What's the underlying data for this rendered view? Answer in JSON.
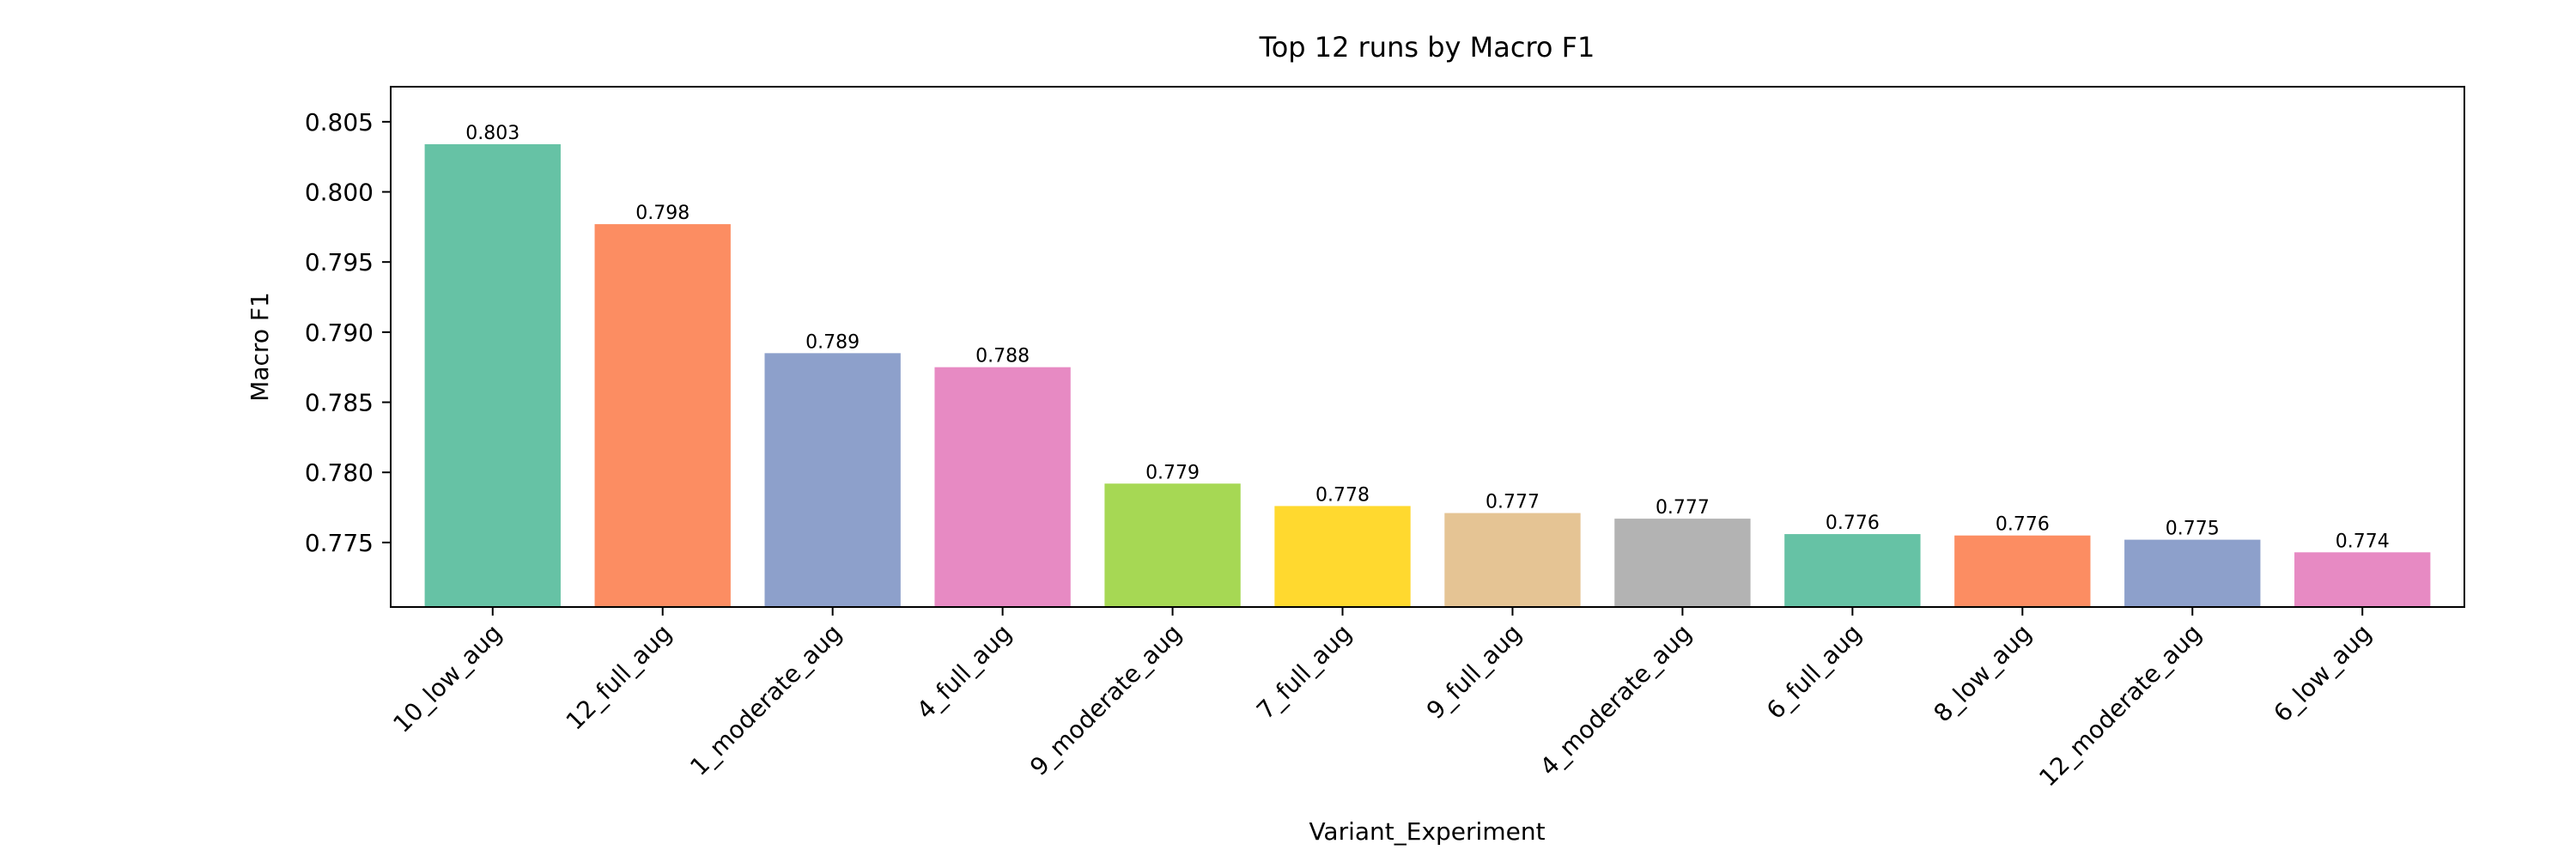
{
  "chart_data": {
    "type": "bar",
    "title": "Top 12 runs by Macro F1",
    "xlabel": "Variant_Experiment",
    "ylabel": "Macro F1",
    "categories": [
      "10_low_aug",
      "12_full_aug",
      "1_moderate_aug",
      "4_full_aug",
      "9_moderate_aug",
      "7_full_aug",
      "9_full_aug",
      "4_moderate_aug",
      "6_full_aug",
      "8_low_aug",
      "12_moderate_aug",
      "6_low_aug"
    ],
    "values": [
      0.8034,
      0.7977,
      0.7885,
      0.7875,
      0.7792,
      0.7776,
      0.7771,
      0.7767,
      0.7756,
      0.7755,
      0.7752,
      0.7743
    ],
    "data_labels": [
      "0.803",
      "0.798",
      "0.789",
      "0.788",
      "0.779",
      "0.778",
      "0.777",
      "0.777",
      "0.776",
      "0.776",
      "0.775",
      "0.774"
    ],
    "colors": [
      "#66c2a5",
      "#fc8d62",
      "#8da0cb",
      "#e78ac3",
      "#a6d854",
      "#ffd92f",
      "#e5c494",
      "#b3b3b3",
      "#66c2a5",
      "#fc8d62",
      "#8da0cb",
      "#e78ac3"
    ],
    "yticks": [
      0.775,
      0.78,
      0.785,
      0.79,
      0.795,
      0.8,
      0.805
    ],
    "ytick_labels": [
      "0.775",
      "0.780",
      "0.785",
      "0.790",
      "0.795",
      "0.800",
      "0.805"
    ],
    "ylim": [
      0.7704,
      0.8075
    ],
    "grid": false,
    "legend": "none"
  }
}
